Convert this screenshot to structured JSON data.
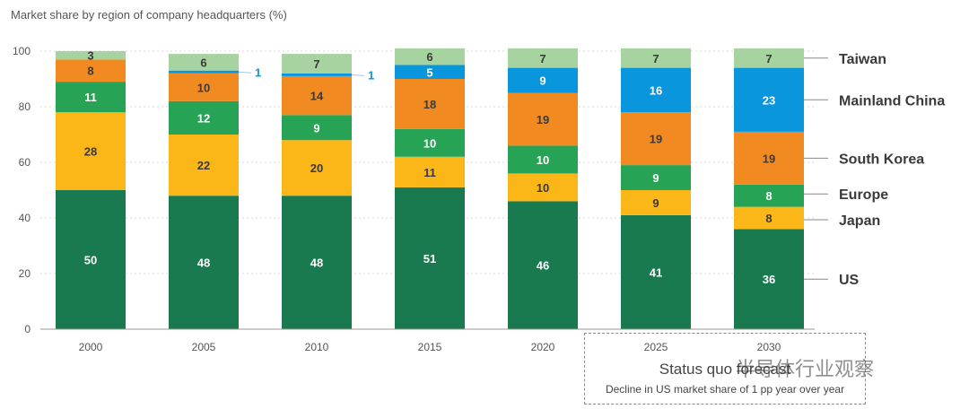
{
  "title": "Market share by region of company headquarters (%)",
  "forecast": {
    "title": "Status quo forecast",
    "subtitle": "Decline in US market share of 1 pp year over year"
  },
  "watermark": "半导体行业观察",
  "colors": {
    "US": "#1a7a4f",
    "Japan": "#fbb717",
    "Europe": "#26a354",
    "South Korea": "#f18a21",
    "Mainland China": "#0a96dc",
    "Taiwan": "#a6d39f"
  },
  "chart_data": {
    "type": "bar",
    "stacked": true,
    "categories": [
      "2000",
      "2005",
      "2010",
      "2015",
      "2020",
      "2025",
      "2030"
    ],
    "ylim": [
      0,
      100
    ],
    "yticks": [
      0,
      20,
      40,
      60,
      80,
      100
    ],
    "xlabel": "",
    "ylabel": "",
    "legend_placement": "right",
    "series": [
      {
        "name": "US",
        "values": [
          50,
          48,
          48,
          51,
          46,
          41,
          36
        ]
      },
      {
        "name": "Japan",
        "values": [
          28,
          22,
          20,
          11,
          10,
          9,
          8
        ]
      },
      {
        "name": "Europe",
        "values": [
          11,
          12,
          9,
          10,
          10,
          9,
          8
        ]
      },
      {
        "name": "South Korea",
        "values": [
          8,
          10,
          14,
          18,
          19,
          19,
          19
        ]
      },
      {
        "name": "Mainland China",
        "values": [
          0,
          1,
          1,
          5,
          9,
          16,
          23
        ]
      },
      {
        "name": "Taiwan",
        "values": [
          3,
          6,
          7,
          6,
          7,
          7,
          7
        ]
      }
    ]
  }
}
